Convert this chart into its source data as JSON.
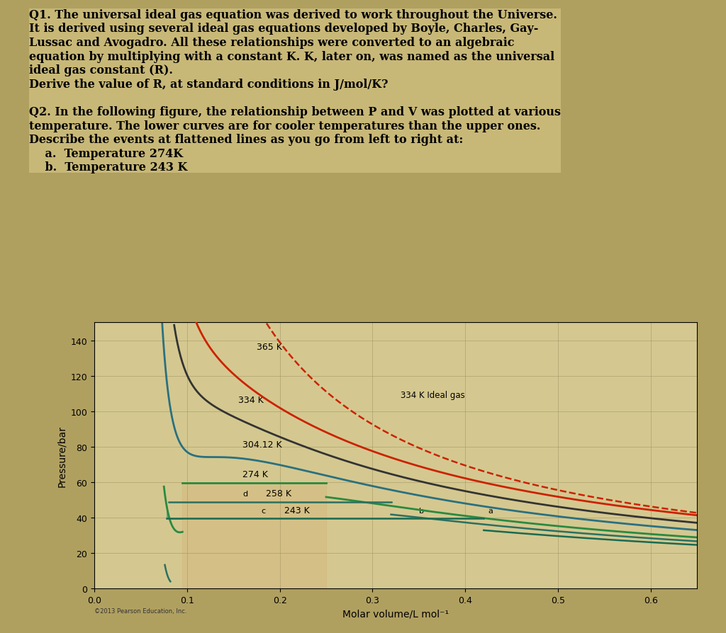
{
  "title_text": "Q1. The universal ideal gas equation was derived to work throughout the Universe.\nIt is derived using several ideal gas equations developed by Boyle, Charles, Gay-\nLussac and Avogadro. All these relationships were converted to an algebraic\nequation by multiplying with a constant K. K, later on, was named as the universal\nideal gas constant (R).\nDerive the value of R, at standard conditions in J/mol/K?\n\nQ2. In the following figure, the relationship between P and V was plotted at various\ntemperature. The lower curves are for cooler temperatures than the upper ones.\nDescribe the events at flattened lines as you go from left to right at:\n    a.  Temperature 274K\n    b.  Temperature 243 K",
  "bg_color": "#c8b878",
  "plot_bg": "#d4c890",
  "teal_color": "#2a8a8a",
  "dark_teal": "#1a6060",
  "red_color": "#cc2200",
  "dark_red": "#990000",
  "green_dark": "#1a5c1a",
  "green_mid": "#2a7a2a",
  "green_light": "#3a9a3a",
  "xlabel": "Molar volume/L mol⁻¹",
  "ylabel": "Pressure/bar",
  "xlim": [
    0,
    0.65
  ],
  "ylim": [
    0,
    150
  ],
  "xticks": [
    0,
    0.1,
    0.2,
    0.3,
    0.4,
    0.5,
    0.6
  ],
  "yticks": [
    0,
    20,
    40,
    60,
    80,
    100,
    120,
    140
  ],
  "temperatures": {
    "365K": {
      "color": "#cc2200",
      "label": "365 K"
    },
    "334K": {
      "color": "#333333",
      "label": "334 K"
    },
    "334K_ideal": {
      "color": "#cc2200",
      "label": "334 K Ideal gas",
      "dashed": true
    },
    "304K": {
      "color": "#2a7070",
      "label": "304.12 K"
    },
    "274K": {
      "color": "#2a8a50",
      "label": "274 K"
    },
    "258K": {
      "color": "#2a8a60",
      "label": "258 K"
    },
    "243K": {
      "color": "#2a9070",
      "label": "243 K"
    }
  },
  "copyright": "©2013 Pearson Education, Inc."
}
